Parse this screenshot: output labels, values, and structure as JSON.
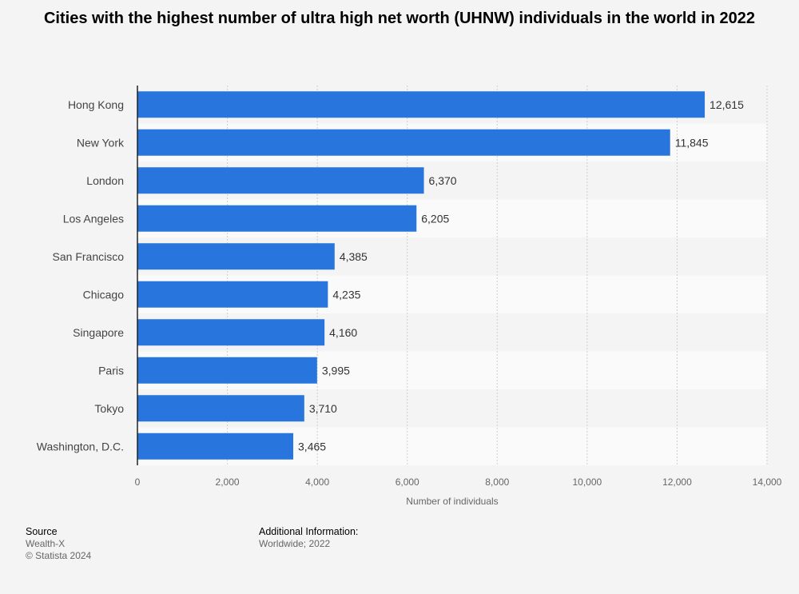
{
  "title": "Cities with the highest number of ultra high net worth (UHNW) individuals in the world in 2022",
  "chart_data": {
    "type": "bar",
    "orientation": "horizontal",
    "categories": [
      "Hong Kong",
      "New York",
      "London",
      "Los Angeles",
      "San Francisco",
      "Chicago",
      "Singapore",
      "Paris",
      "Tokyo",
      "Washington, D.C."
    ],
    "values": [
      12615,
      11845,
      6370,
      6205,
      4385,
      4235,
      4160,
      3995,
      3710,
      3465
    ],
    "value_labels": [
      "12,615",
      "11,845",
      "6,370",
      "6,205",
      "4,385",
      "4,235",
      "4,160",
      "3,995",
      "3,710",
      "3,465"
    ],
    "xlabel": "Number of individuals",
    "ylabel": "",
    "xlim": [
      0,
      14000
    ],
    "ticks": [
      0,
      2000,
      4000,
      6000,
      8000,
      10000,
      12000,
      14000
    ],
    "tick_labels": [
      "0",
      "2,000",
      "4,000",
      "6,000",
      "8,000",
      "10,000",
      "12,000",
      "14,000"
    ],
    "grid": true,
    "bar_color": "#2876dd"
  },
  "footer": {
    "source_heading": "Source",
    "source_name": "Wealth-X",
    "copyright": "© Statista 2024",
    "info_heading": "Additional Information:",
    "info_text": "Worldwide; 2022"
  }
}
